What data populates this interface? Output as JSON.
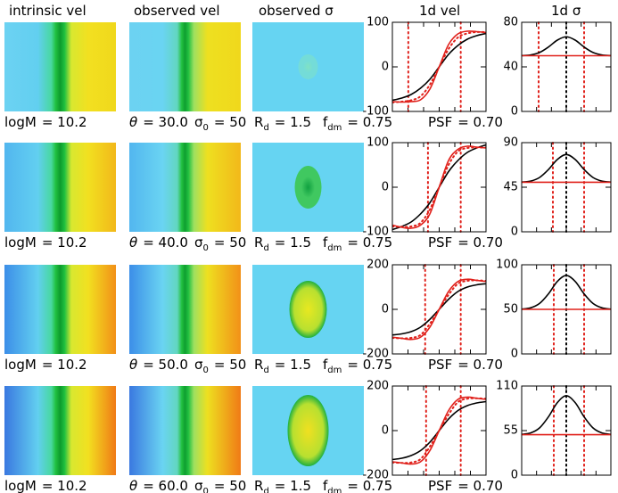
{
  "panel_titles": [
    "intrinsic vel",
    "observed vel",
    "observed σ",
    "1d vel",
    "1d σ"
  ],
  "parameter_rows": [
    [
      {
        "symbol": "logM",
        "value": "= 10.2"
      },
      {
        "symbol": "θ",
        "value": "= 30.0"
      },
      {
        "symbol": "σ",
        "sub": "0",
        "value": "= 50"
      },
      {
        "symbol": "R",
        "sub": "d",
        "value": "= 1.5"
      },
      {
        "symbol": "f",
        "sub": "dm",
        "value": "= 0.75"
      },
      {
        "symbol": "PSF",
        "value": "= 0.70"
      }
    ],
    [
      {
        "symbol": "logM",
        "value": "= 10.2"
      },
      {
        "symbol": "θ",
        "value": "= 40.0"
      },
      {
        "symbol": "σ",
        "sub": "0",
        "value": "= 50"
      },
      {
        "symbol": "R",
        "sub": "d",
        "value": "= 1.5"
      },
      {
        "symbol": "f",
        "sub": "dm",
        "value": "= 0.75"
      },
      {
        "symbol": "PSF",
        "value": "= 0.70"
      }
    ],
    [
      {
        "symbol": "logM",
        "value": "= 10.2"
      },
      {
        "symbol": "θ",
        "value": "= 50.0"
      },
      {
        "symbol": "σ",
        "sub": "0",
        "value": "= 50"
      },
      {
        "symbol": "R",
        "sub": "d",
        "value": "= 1.5"
      },
      {
        "symbol": "f",
        "sub": "dm",
        "value": "= 0.75"
      },
      {
        "symbol": "PSF",
        "value": "= 0.70"
      }
    ],
    [
      {
        "symbol": "logM",
        "value": "= 10.2"
      },
      {
        "symbol": "θ",
        "value": "= 60.0"
      },
      {
        "symbol": "σ",
        "sub": "0",
        "value": "= 50"
      },
      {
        "symbol": "R",
        "sub": "d",
        "value": "= 1.5"
      },
      {
        "symbol": "f",
        "sub": "dm",
        "value": "= 0.75"
      },
      {
        "symbol": "PSF",
        "value": "= 0.70"
      }
    ]
  ],
  "chart_data": [
    {
      "type": "line",
      "xlim": [
        -5,
        5
      ],
      "ylim": [
        -100,
        100
      ],
      "yticks": [
        -100,
        0,
        100
      ],
      "x": [
        -5,
        -4,
        -3,
        -2,
        -1,
        0,
        1,
        2,
        3,
        4,
        5
      ],
      "series": [
        {
          "color": "#000000",
          "values": [
            -75,
            -70,
            -62,
            -48,
            -28,
            0,
            28,
            48,
            62,
            70,
            75
          ]
        },
        {
          "color": "#e0201a",
          "values": [
            -78,
            -79,
            -78,
            -74,
            -50,
            0,
            50,
            74,
            80,
            79,
            77
          ]
        },
        {
          "color": "#e0201a",
          "dash": "dotted",
          "values": [
            -80,
            -78,
            -75,
            -66,
            -40,
            0,
            40,
            66,
            75,
            78,
            78
          ]
        }
      ],
      "vlines": [
        {
          "x": -3.3,
          "color": "#e0201a"
        },
        {
          "x": 2.3,
          "color": "#e0201a"
        }
      ]
    },
    {
      "type": "line",
      "xlim": [
        -5,
        5
      ],
      "ylim": [
        0,
        80
      ],
      "yticks": [
        0,
        40,
        80
      ],
      "x": [
        -5,
        -4,
        -3,
        -2,
        -1,
        0,
        1,
        2,
        3,
        4,
        5
      ],
      "series": [
        {
          "color": "#000000",
          "values": [
            50.1,
            50.7,
            52.9,
            57.8,
            64,
            67,
            64,
            57.8,
            52.9,
            50.7,
            50.1
          ]
        },
        {
          "color": "#e0201a",
          "values": [
            50,
            50,
            50,
            50,
            50,
            50,
            50,
            50,
            50,
            50,
            50
          ]
        }
      ],
      "vlines": [
        {
          "x": -3.1,
          "color": "#e0201a"
        },
        {
          "x": 0,
          "color": "#000000"
        },
        {
          "x": 2,
          "color": "#e0201a"
        }
      ]
    },
    {
      "type": "line",
      "xlim": [
        -5,
        5
      ],
      "ylim": [
        -100,
        100
      ],
      "yticks": [
        -100,
        0,
        100
      ],
      "x": [
        -5,
        -4,
        -3,
        -2,
        -1,
        0,
        1,
        2,
        3,
        4,
        5
      ],
      "series": [
        {
          "color": "#000000",
          "values": [
            -95,
            -88,
            -78,
            -60,
            -35,
            0,
            35,
            60,
            78,
            88,
            95
          ]
        },
        {
          "color": "#e0201a",
          "values": [
            -85,
            -90,
            -92,
            -85,
            -60,
            0,
            60,
            85,
            92,
            90,
            88
          ]
        },
        {
          "color": "#e0201a",
          "dash": "dotted",
          "values": [
            -88,
            -89,
            -88,
            -80,
            -50,
            0,
            50,
            80,
            88,
            89,
            89
          ]
        }
      ],
      "vlines": [
        {
          "x": -1.2,
          "color": "#e0201a"
        },
        {
          "x": 2.3,
          "color": "#e0201a"
        }
      ]
    },
    {
      "type": "line",
      "xlim": [
        -5,
        5
      ],
      "ylim": [
        0,
        90
      ],
      "yticks": [
        0,
        45,
        90
      ],
      "x": [
        -5,
        -4,
        -3,
        -2,
        -1,
        0,
        1,
        2,
        3,
        4,
        5
      ],
      "series": [
        {
          "color": "#000000",
          "values": [
            50.2,
            51.2,
            54.8,
            62.8,
            73,
            78,
            73,
            62.8,
            54.8,
            51.2,
            50.2
          ]
        },
        {
          "color": "#e0201a",
          "values": [
            50,
            50,
            50,
            50,
            50,
            50,
            50,
            50,
            50,
            50,
            50
          ]
        }
      ],
      "vlines": [
        {
          "x": -1.5,
          "color": "#e0201a"
        },
        {
          "x": 0,
          "color": "#000000"
        },
        {
          "x": 2,
          "color": "#e0201a"
        }
      ]
    },
    {
      "type": "line",
      "xlim": [
        -5,
        5
      ],
      "ylim": [
        -200,
        200
      ],
      "yticks": [
        -200,
        0,
        200
      ],
      "x": [
        -5,
        -4,
        -3,
        -2,
        -1,
        0,
        1,
        2,
        3,
        4,
        5
      ],
      "series": [
        {
          "color": "#000000",
          "values": [
            -115,
            -110,
            -100,
            -80,
            -45,
            0,
            45,
            80,
            100,
            110,
            115
          ]
        },
        {
          "color": "#e0201a",
          "values": [
            -125,
            -130,
            -135,
            -125,
            -80,
            0,
            80,
            125,
            135,
            130,
            125
          ]
        },
        {
          "color": "#e0201a",
          "dash": "dotted",
          "values": [
            -128,
            -130,
            -128,
            -115,
            -65,
            0,
            65,
            115,
            128,
            130,
            128
          ]
        }
      ],
      "vlines": [
        {
          "x": -1.5,
          "color": "#e0201a"
        },
        {
          "x": 2.3,
          "color": "#e0201a"
        }
      ]
    },
    {
      "type": "line",
      "xlim": [
        -5,
        5
      ],
      "ylim": [
        0,
        100
      ],
      "yticks": [
        0,
        50,
        100
      ],
      "x": [
        -5,
        -4,
        -3,
        -2,
        -1,
        0,
        1,
        2,
        3,
        4,
        5
      ],
      "series": [
        {
          "color": "#000000",
          "values": [
            50.3,
            51.7,
            56.6,
            67.4,
            81.3,
            88,
            81.3,
            67.4,
            56.6,
            51.7,
            50.3
          ]
        },
        {
          "color": "#e0201a",
          "values": [
            50,
            50,
            50,
            50,
            50,
            50,
            50,
            50,
            50,
            50,
            50
          ]
        }
      ],
      "vlines": [
        {
          "x": -1.4,
          "color": "#e0201a"
        },
        {
          "x": 0,
          "color": "#000000"
        },
        {
          "x": 2,
          "color": "#e0201a"
        }
      ]
    },
    {
      "type": "line",
      "xlim": [
        -5,
        5
      ],
      "ylim": [
        -200,
        200
      ],
      "yticks": [
        -200,
        0,
        200
      ],
      "x": [
        -5,
        -4,
        -3,
        -2,
        -1,
        0,
        1,
        2,
        3,
        4,
        5
      ],
      "series": [
        {
          "color": "#000000",
          "values": [
            -130,
            -124,
            -112,
            -90,
            -52,
            0,
            52,
            90,
            112,
            124,
            130
          ]
        },
        {
          "color": "#e0201a",
          "values": [
            -140,
            -145,
            -150,
            -140,
            -90,
            0,
            90,
            140,
            150,
            145,
            140
          ]
        },
        {
          "color": "#e0201a",
          "dash": "dotted",
          "values": [
            -143,
            -145,
            -143,
            -128,
            -72,
            0,
            72,
            128,
            143,
            145,
            143
          ]
        }
      ],
      "vlines": [
        {
          "x": -1.4,
          "color": "#e0201a"
        },
        {
          "x": 2.3,
          "color": "#e0201a"
        }
      ]
    },
    {
      "type": "line",
      "xlim": [
        -5,
        5
      ],
      "ylim": [
        0,
        110
      ],
      "yticks": [
        0,
        55,
        110
      ],
      "x": [
        -5,
        -4,
        -3,
        -2,
        -1,
        0,
        1,
        2,
        3,
        4,
        5
      ],
      "series": [
        {
          "color": "#000000",
          "values": [
            50.4,
            52.1,
            58.3,
            72,
            89.5,
            98,
            89.5,
            72,
            58.3,
            52.1,
            50.4
          ]
        },
        {
          "color": "#e0201a",
          "values": [
            50,
            50,
            50,
            50,
            50,
            50,
            50,
            50,
            50,
            50,
            50
          ]
        }
      ],
      "vlines": [
        {
          "x": -1.4,
          "color": "#e0201a"
        },
        {
          "x": 0,
          "color": "#000000"
        },
        {
          "x": 2,
          "color": "#e0201a"
        }
      ]
    }
  ]
}
